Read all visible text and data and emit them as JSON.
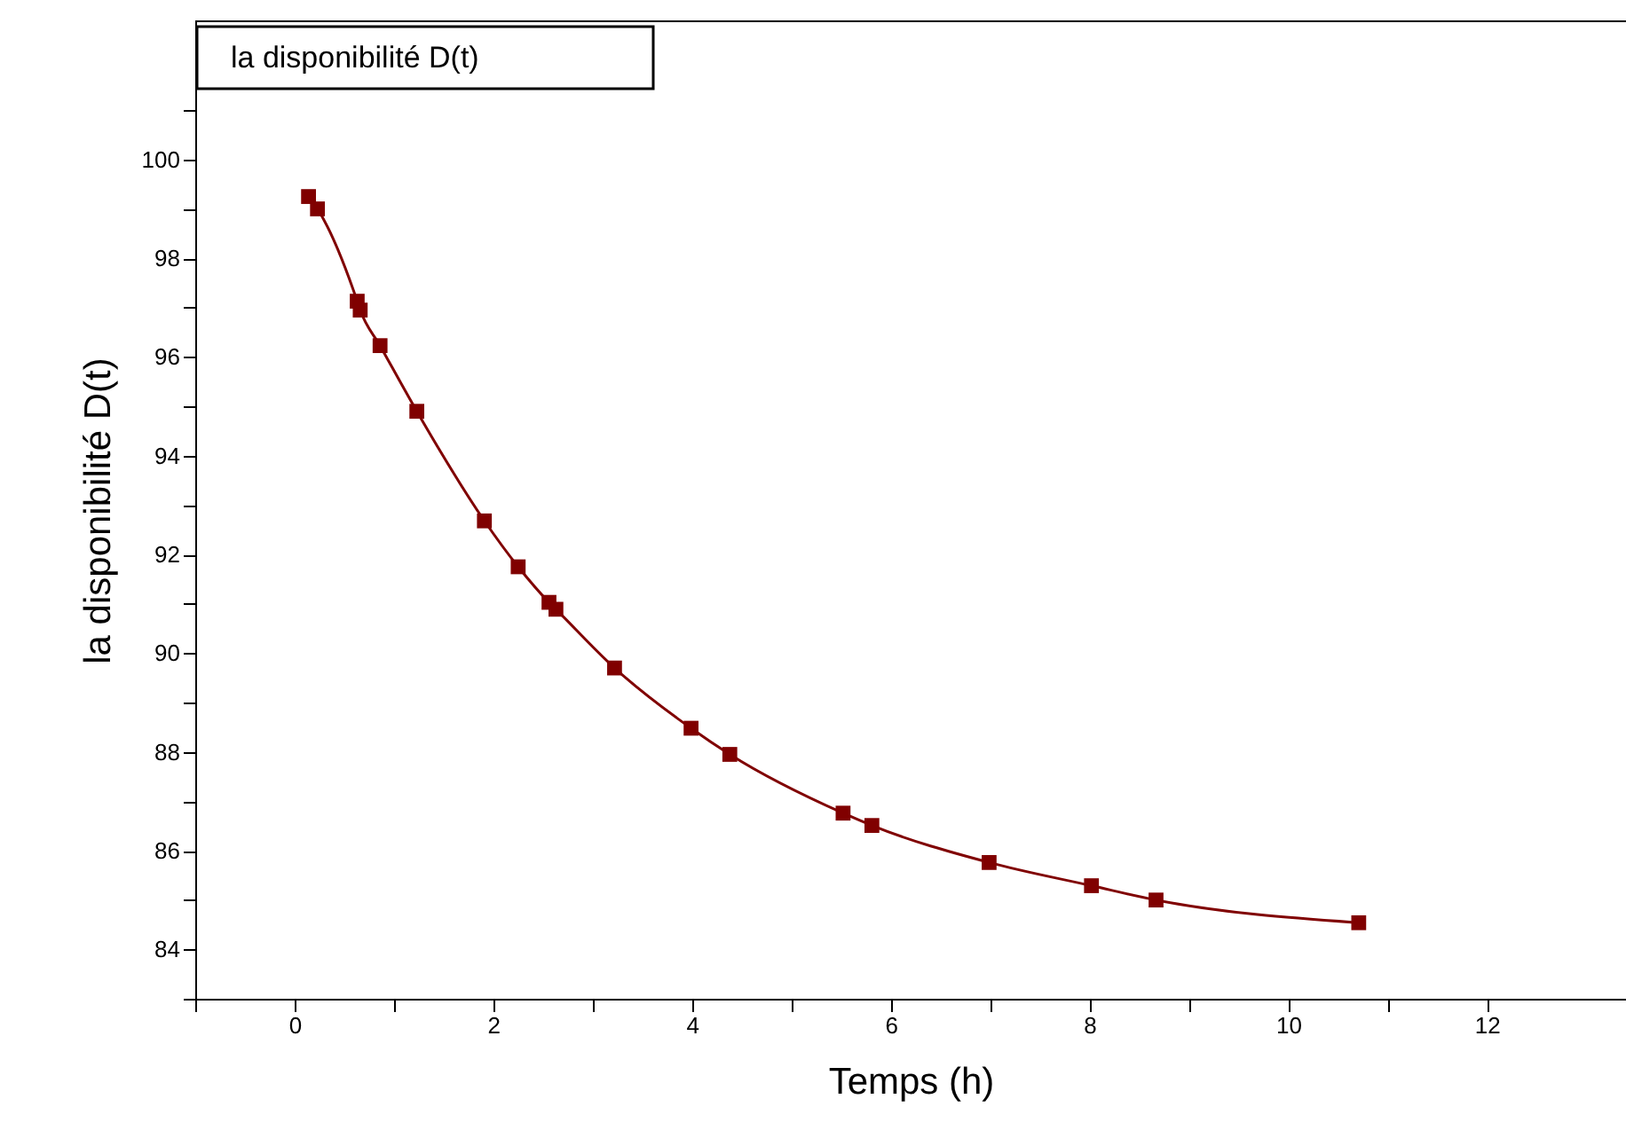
{
  "chart_data": {
    "type": "line",
    "title": "la disponibilité D(t)",
    "xlabel": "Temps (h)",
    "ylabel": "la disponibilité D(t)",
    "x": [
      0.14,
      0.23,
      0.63,
      0.66,
      0.86,
      1.23,
      1.91,
      2.25,
      2.56,
      2.63,
      3.22,
      3.99,
      4.38,
      5.52,
      5.81,
      6.99,
      8.02,
      8.67,
      10.71
    ],
    "series": [
      {
        "color": "#800000",
        "values": [
          99.25,
          99.0,
          97.13,
          96.95,
          96.23,
          94.9,
          92.68,
          91.75,
          91.03,
          90.89,
          89.7,
          88.48,
          87.95,
          86.76,
          86.51,
          85.76,
          85.29,
          85.0,
          84.54
        ]
      }
    ],
    "xlim": [
      -1,
      13.4
    ],
    "ylim": [
      83,
      102.8
    ],
    "xticks": [
      {
        "value": -1,
        "label": null
      },
      0,
      {
        "value": 1,
        "label": null
      },
      2,
      {
        "value": 3,
        "label": null
      },
      4,
      {
        "value": 5,
        "label": null
      },
      6,
      {
        "value": 7,
        "label": null
      },
      8,
      {
        "value": 9,
        "label": null
      },
      10,
      {
        "value": 11,
        "label": null
      },
      12
    ],
    "yticks": [
      {
        "value": 83,
        "label": null
      },
      84,
      {
        "value": 85,
        "label": null
      },
      86,
      {
        "value": 87,
        "label": null
      },
      88,
      {
        "value": 89,
        "label": null
      },
      90,
      {
        "value": 91,
        "label": null
      },
      92,
      {
        "value": 93,
        "label": null
      },
      94,
      {
        "value": 95,
        "label": null
      },
      96,
      {
        "value": 97,
        "label": null
      },
      98,
      {
        "value": 99,
        "label": null
      },
      100,
      {
        "value": 101,
        "label": null
      }
    ],
    "grid": false,
    "marker": "square",
    "line_style": "solid"
  }
}
